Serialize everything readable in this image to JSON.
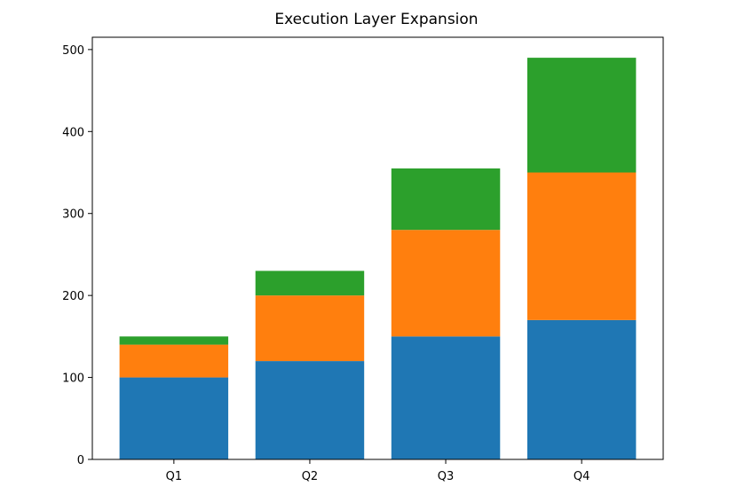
{
  "chart_data": {
    "type": "bar",
    "stacked": true,
    "title": "Execution Layer Expansion",
    "xlabel": "",
    "ylabel": "",
    "categories": [
      "Q1",
      "Q2",
      "Q3",
      "Q4"
    ],
    "ylim": [
      0,
      515
    ],
    "yticks": [
      0,
      100,
      200,
      300,
      400,
      500
    ],
    "series": [
      {
        "values": [
          100,
          120,
          150,
          170
        ],
        "color": "#1f77b4"
      },
      {
        "values": [
          40,
          80,
          130,
          180
        ],
        "color": "#ff7f0e"
      },
      {
        "values": [
          10,
          30,
          75,
          140
        ],
        "color": "#2ca02c"
      }
    ],
    "grid": false,
    "legend": "none"
  }
}
